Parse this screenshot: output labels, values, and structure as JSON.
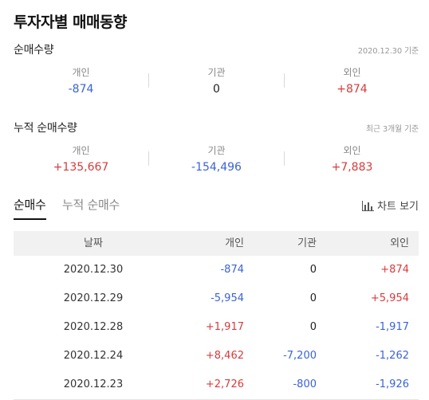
{
  "title": "투자자별 매매동향",
  "net": {
    "label": "순매수량",
    "note": "2020.12.30 기준",
    "items": [
      {
        "name": "개인",
        "value": "-874",
        "sign": "neg"
      },
      {
        "name": "기관",
        "value": "0",
        "sign": "zero"
      },
      {
        "name": "외인",
        "value": "+874",
        "sign": "pos"
      }
    ]
  },
  "cumulative": {
    "label": "누적 순매수량",
    "note": "최근 3개월 기준",
    "items": [
      {
        "name": "개인",
        "value": "+135,667",
        "sign": "pos"
      },
      {
        "name": "기관",
        "value": "-154,496",
        "sign": "neg"
      },
      {
        "name": "외인",
        "value": "+7,883",
        "sign": "pos"
      }
    ]
  },
  "tabs": {
    "active": "순매수",
    "inactive": "누적 순매수",
    "chart_button": "차트 보기"
  },
  "table": {
    "headers": [
      "날짜",
      "개인",
      "기관",
      "외인"
    ],
    "rows": [
      {
        "date": "2020.12.30",
        "individual": "-874",
        "institution": "0",
        "foreign": "+874"
      },
      {
        "date": "2020.12.29",
        "individual": "-5,954",
        "institution": "0",
        "foreign": "+5,954"
      },
      {
        "date": "2020.12.28",
        "individual": "+1,917",
        "institution": "0",
        "foreign": "-1,917"
      },
      {
        "date": "2020.12.24",
        "individual": "+8,462",
        "institution": "-7,200",
        "foreign": "-1,262"
      },
      {
        "date": "2020.12.23",
        "individual": "+2,726",
        "institution": "-800",
        "foreign": "-1,926"
      }
    ]
  },
  "colors": {
    "positive": "#d83b3b",
    "negative": "#3a63d6"
  }
}
